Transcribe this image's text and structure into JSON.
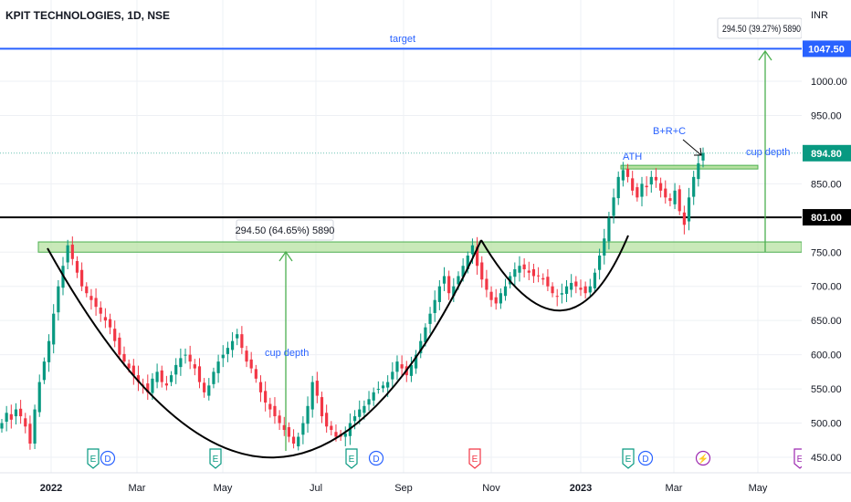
{
  "chart_data": {
    "type": "candlestick",
    "title": "KPIT TECHNOLOGIES, 1D, NSE",
    "currency": "INR",
    "x_labels": [
      "2022",
      "Mar",
      "May",
      "Jul",
      "Sep",
      "Nov",
      "2023",
      "Mar",
      "May"
    ],
    "y_ticks": [
      "1000.00",
      "950.00",
      "850.00",
      "750.00",
      "700.00",
      "650.00",
      "600.00",
      "550.00",
      "500.00",
      "450.00"
    ],
    "ylim": [
      440,
      1070
    ],
    "grid": true,
    "price_tags": [
      {
        "value": 1047.5,
        "label": "1047.50",
        "color": "#2962ff"
      },
      {
        "value": 894.8,
        "label": "894.80",
        "color": "#089981"
      },
      {
        "value": 801,
        "label": "801.00",
        "color": "#000000"
      }
    ],
    "horizontal_lines": [
      {
        "value": 1047.5,
        "label": "target",
        "color": "#2962ff"
      },
      {
        "value": 801,
        "label": "",
        "color": "#000000"
      }
    ],
    "zones": [
      {
        "from": 750,
        "to": 765,
        "color": "#b7e1a1"
      }
    ],
    "annotations": {
      "target": "target",
      "ath": "ATH",
      "brc": "B+R+C",
      "cup_depth_left": "cup depth",
      "cup_depth_right": "cup depth",
      "measure_left": "294.50 (64.65%) 5890",
      "measure_right": "294.50 (39.27%) 5890"
    },
    "events": [
      {
        "label": "E",
        "x_index": 0,
        "color": "#089981"
      },
      {
        "label": "D",
        "x_index": 0,
        "color": "#2962ff"
      },
      {
        "label": "E",
        "x_index": 2,
        "color": "#089981"
      },
      {
        "label": "E",
        "x_index": 3,
        "color": "#089981"
      },
      {
        "label": "D",
        "x_index": 3,
        "color": "#2962ff"
      },
      {
        "label": "E",
        "x_index": 5,
        "color": "#f23645"
      },
      {
        "label": "E",
        "x_index": 6,
        "color": "#089981"
      },
      {
        "label": "D",
        "x_index": 6,
        "color": "#2962ff"
      },
      {
        "label": "⚡",
        "x_index": 7,
        "color": "#9c27b0"
      },
      {
        "label": "E",
        "x_index": 8,
        "color": "#9c27b0"
      }
    ],
    "series": [
      {
        "candles_close": [
          500,
          515,
          505,
          520,
          510,
          495,
          470,
          520,
          560,
          590,
          620,
          660,
          700,
          730,
          760,
          740,
          720,
          700,
          690,
          680,
          670,
          660,
          650,
          640,
          620,
          600,
          590,
          580,
          570,
          560,
          555,
          545,
          565,
          575,
          560,
          555,
          570,
          585,
          595,
          600,
          590,
          580,
          560,
          545,
          555,
          575,
          590,
          600,
          610,
          620,
          630,
          610,
          590,
          580,
          565,
          545,
          530,
          520,
          510,
          500,
          490,
          480,
          470,
          480,
          500,
          525,
          560,
          540,
          510,
          495,
          490,
          480,
          480,
          485,
          500,
          510,
          520,
          525,
          535,
          545,
          550,
          555,
          560,
          575,
          590,
          580,
          570,
          585,
          600,
          620,
          640,
          660,
          680,
          700,
          715,
          690,
          700,
          715,
          730,
          745,
          760,
          730,
          710,
          695,
          680,
          675,
          690,
          700,
          715,
          725,
          730,
          725,
          720,
          715,
          715,
          710,
          700,
          690,
          685,
          690,
          700,
          705,
          700,
          695,
          690,
          700,
          720,
          745,
          770,
          800,
          830,
          860,
          870,
          860,
          840,
          830,
          850,
          845,
          860,
          855,
          840,
          830,
          825,
          840,
          810,
          790,
          830,
          860,
          880,
          895
        ]
      }
    ]
  }
}
